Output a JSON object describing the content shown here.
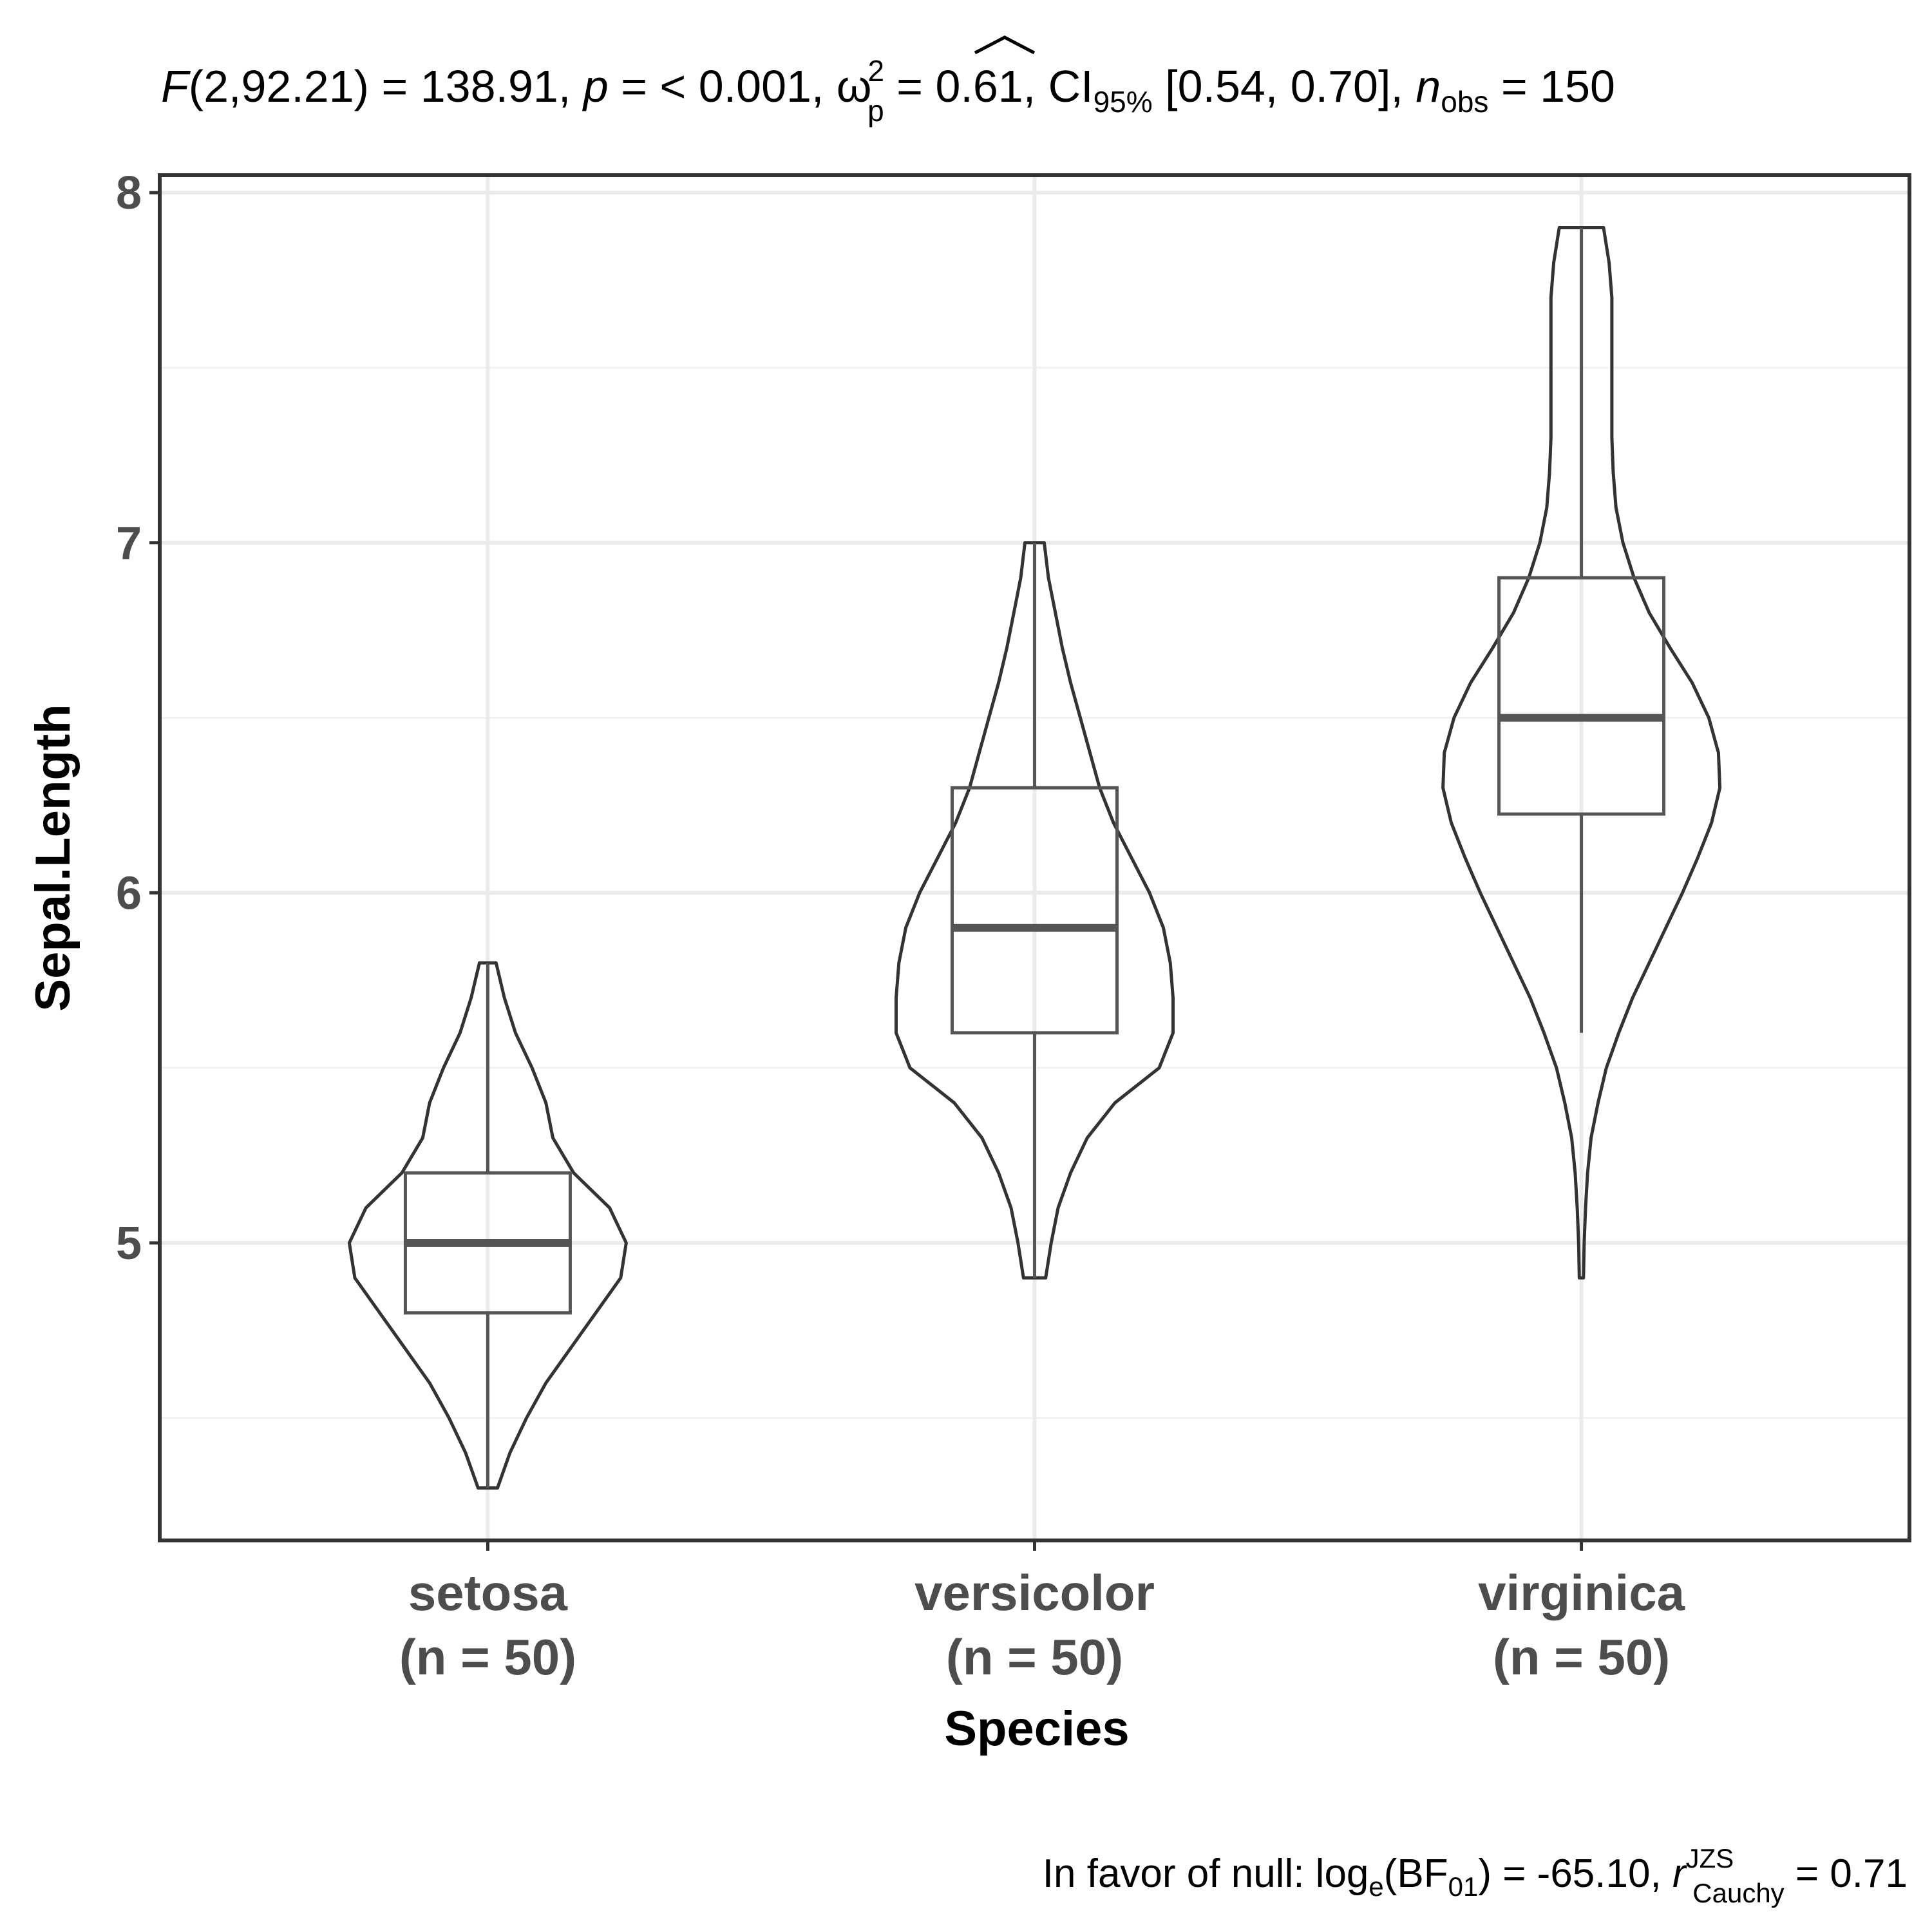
{
  "subtitle": {
    "stat_name": "F",
    "df": "(2,92.21) = 138.91, ",
    "p_sym": "p",
    "p_val": " = < 0.001, ",
    "omega": "ω",
    "omega_sup": "2",
    "omega_sub": "p",
    "omega_val": " = 0.61, CI",
    "ci_sub": "95%",
    "ci_val": " [0.54, 0.70], ",
    "n_sym": "n",
    "n_sub": "obs",
    "n_val": " = 150"
  },
  "caption": {
    "lead": "In favor of null: log",
    "log_sub": "e",
    "bf": "(BF",
    "bf_sub": "01",
    "bf_val": ") = -65.10, ",
    "r_sym": "r",
    "r_sup": "JZS",
    "r_sub": "Cauchy",
    "r_val": " = 0.71"
  },
  "chart_data": {
    "type": "violin+box",
    "xlabel": "Species",
    "ylabel": "Sepal.Length",
    "ylim": [
      4.15,
      8.05
    ],
    "yticks": [
      5,
      6,
      7,
      8
    ],
    "ytick_labels": [
      "5",
      "6",
      "7",
      "8"
    ],
    "grid": true,
    "categories": [
      {
        "name": "setosa",
        "n_label": "(n = 50)",
        "box": {
          "q1": 4.8,
          "median": 5.0,
          "q3": 5.2,
          "whisker_low": 4.3,
          "whisker_high": 5.8
        },
        "violin": {
          "min": 4.3,
          "max": 5.8,
          "profile": [
            [
              4.3,
              0.07
            ],
            [
              4.4,
              0.16
            ],
            [
              4.5,
              0.28
            ],
            [
              4.6,
              0.42
            ],
            [
              4.7,
              0.6
            ],
            [
              4.8,
              0.78
            ],
            [
              4.9,
              0.96
            ],
            [
              5.0,
              1.0
            ],
            [
              5.1,
              0.88
            ],
            [
              5.2,
              0.62
            ],
            [
              5.3,
              0.47
            ],
            [
              5.4,
              0.42
            ],
            [
              5.5,
              0.32
            ],
            [
              5.6,
              0.2
            ],
            [
              5.7,
              0.12
            ],
            [
              5.8,
              0.06
            ]
          ]
        }
      },
      {
        "name": "versicolor",
        "n_label": "(n = 50)",
        "box": {
          "q1": 5.6,
          "median": 5.9,
          "q3": 6.3,
          "whisker_low": 4.9,
          "whisker_high": 7.0
        },
        "violin": {
          "min": 4.9,
          "max": 7.0,
          "profile": [
            [
              4.9,
              0.08
            ],
            [
              5.0,
              0.12
            ],
            [
              5.1,
              0.17
            ],
            [
              5.2,
              0.26
            ],
            [
              5.3,
              0.38
            ],
            [
              5.4,
              0.58
            ],
            [
              5.5,
              0.9
            ],
            [
              5.6,
              1.0
            ],
            [
              5.7,
              1.0
            ],
            [
              5.8,
              0.98
            ],
            [
              5.9,
              0.93
            ],
            [
              6.0,
              0.83
            ],
            [
              6.1,
              0.7
            ],
            [
              6.2,
              0.57
            ],
            [
              6.3,
              0.47
            ],
            [
              6.4,
              0.4
            ],
            [
              6.5,
              0.33
            ],
            [
              6.6,
              0.26
            ],
            [
              6.7,
              0.2
            ],
            [
              6.8,
              0.15
            ],
            [
              6.9,
              0.1
            ],
            [
              7.0,
              0.07
            ]
          ]
        }
      },
      {
        "name": "virginica",
        "n_label": "(n = 50)",
        "box": {
          "q1": 6.225,
          "median": 6.5,
          "q3": 6.9,
          "whisker_low": 5.6,
          "whisker_high": 7.9
        },
        "violin": {
          "min": 4.9,
          "max": 7.9,
          "profile": [
            [
              4.9,
              0.015
            ],
            [
              5.0,
              0.02
            ],
            [
              5.1,
              0.03
            ],
            [
              5.2,
              0.045
            ],
            [
              5.3,
              0.07
            ],
            [
              5.4,
              0.12
            ],
            [
              5.5,
              0.18
            ],
            [
              5.6,
              0.27
            ],
            [
              5.7,
              0.37
            ],
            [
              5.8,
              0.49
            ],
            [
              5.9,
              0.61
            ],
            [
              6.0,
              0.73
            ],
            [
              6.1,
              0.84
            ],
            [
              6.2,
              0.94
            ],
            [
              6.3,
              1.0
            ],
            [
              6.4,
              0.99
            ],
            [
              6.5,
              0.92
            ],
            [
              6.6,
              0.8
            ],
            [
              6.7,
              0.64
            ],
            [
              6.8,
              0.49
            ],
            [
              6.9,
              0.38
            ],
            [
              7.0,
              0.3
            ],
            [
              7.1,
              0.25
            ],
            [
              7.2,
              0.23
            ],
            [
              7.3,
              0.22
            ],
            [
              7.4,
              0.22
            ],
            [
              7.5,
              0.22
            ],
            [
              7.6,
              0.22
            ],
            [
              7.7,
              0.22
            ],
            [
              7.8,
              0.2
            ],
            [
              7.9,
              0.16
            ]
          ]
        }
      }
    ]
  }
}
